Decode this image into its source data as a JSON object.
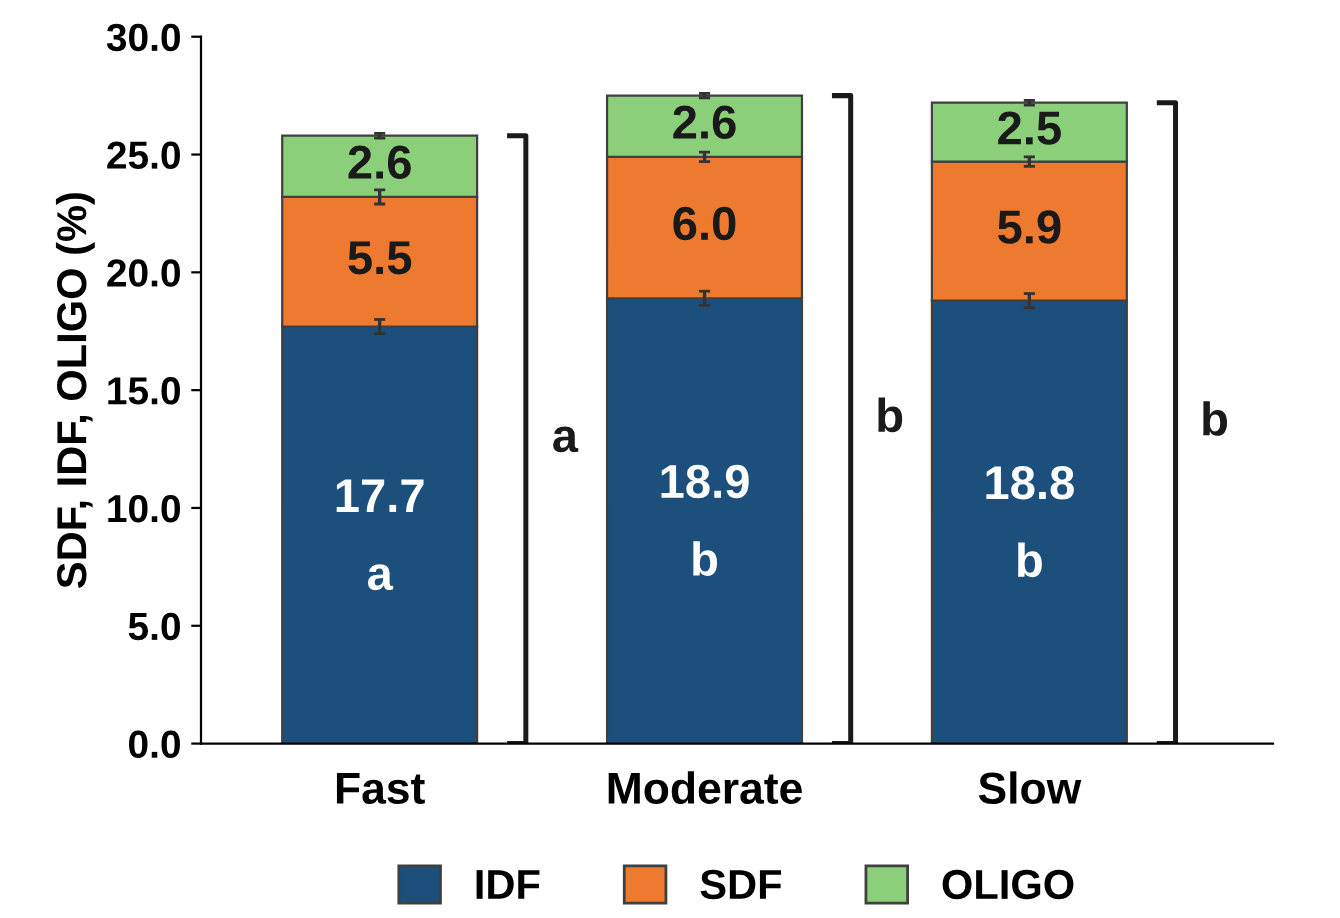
{
  "chart_data": {
    "type": "bar",
    "stacked": true,
    "ylabel": "SDF, IDF, OLIGO (%)",
    "categories": [
      "Fast",
      "Moderate",
      "Slow"
    ],
    "series": [
      {
        "name": "IDF",
        "color": "#1c4f7c",
        "values": [
          17.7,
          18.9,
          18.8
        ],
        "value_labels": [
          "17.7",
          "18.9",
          "18.8"
        ],
        "errors": [
          0.3,
          0.3,
          0.3
        ]
      },
      {
        "name": "SDF",
        "color": "#ee7a30",
        "values": [
          5.5,
          6.0,
          5.9
        ],
        "value_labels": [
          "5.5",
          "6.0",
          "5.9"
        ],
        "errors": [
          0.3,
          0.2,
          0.2
        ]
      },
      {
        "name": "OLIGO",
        "color": "#8ccf7a",
        "values": [
          2.6,
          2.6,
          2.5
        ],
        "value_labels": [
          "2.6",
          "2.6",
          "2.5"
        ],
        "errors": [
          0.1,
          0.1,
          0.1
        ]
      }
    ],
    "ylim": [
      0,
      30
    ],
    "yticks": [
      {
        "value": 0,
        "label": "0.0"
      },
      {
        "value": 5,
        "label": "5.0"
      },
      {
        "value": 10,
        "label": "10.0"
      },
      {
        "value": 15,
        "label": "15.0"
      },
      {
        "value": 20,
        "label": "20.0"
      },
      {
        "value": 25,
        "label": "25.0"
      },
      {
        "value": 30,
        "label": "30.0"
      }
    ],
    "legend": "bottom",
    "grid": false,
    "annotations": [
      "a",
      "b",
      "b",
      "a",
      "b",
      "b"
    ]
  }
}
